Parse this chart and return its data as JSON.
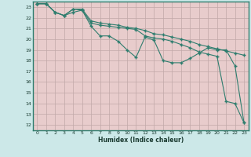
{
  "xlabel": "Humidex (Indice chaleur)",
  "bg_color": "#cce8e8",
  "plot_bg_color": "#e8d8d8",
  "line_color": "#2e7d6e",
  "grid_color_top": "#b8d8d0",
  "grid_color": "#c8a8a8",
  "xlim": [
    -0.5,
    23.5
  ],
  "ylim": [
    11.5,
    23.5
  ],
  "yticks": [
    12,
    13,
    14,
    15,
    16,
    17,
    18,
    19,
    20,
    21,
    22,
    23
  ],
  "xticks": [
    0,
    1,
    2,
    3,
    4,
    5,
    6,
    7,
    8,
    9,
    10,
    11,
    12,
    13,
    14,
    15,
    16,
    17,
    18,
    19,
    20,
    21,
    22,
    23
  ],
  "line1_x": [
    0,
    1,
    2,
    3,
    4,
    5,
    6,
    7,
    8,
    9,
    10,
    11,
    12,
    13,
    14,
    15,
    16,
    17,
    18,
    19,
    20,
    21,
    22,
    23
  ],
  "line1_y": [
    23.3,
    23.3,
    22.5,
    22.2,
    22.8,
    22.8,
    21.7,
    21.5,
    21.4,
    21.3,
    21.1,
    21.0,
    20.8,
    20.5,
    20.4,
    20.2,
    20.0,
    19.8,
    19.5,
    19.3,
    19.1,
    18.9,
    18.7,
    18.5
  ],
  "line2_x": [
    0,
    1,
    2,
    3,
    4,
    5,
    6,
    7,
    8,
    9,
    10,
    11,
    12,
    13,
    14,
    15,
    16,
    17,
    18,
    19,
    20,
    21,
    22,
    23
  ],
  "line2_y": [
    23.3,
    23.3,
    22.5,
    22.2,
    22.5,
    22.7,
    21.2,
    20.3,
    20.3,
    19.8,
    19.0,
    18.3,
    20.2,
    19.9,
    18.0,
    17.8,
    17.8,
    18.2,
    18.7,
    19.2,
    19.0,
    19.0,
    17.5,
    12.2
  ],
  "line3_x": [
    0,
    1,
    2,
    3,
    4,
    5,
    6,
    7,
    8,
    9,
    10,
    11,
    12,
    13,
    14,
    15,
    16,
    17,
    18,
    19,
    20,
    21,
    22,
    23
  ],
  "line3_y": [
    23.3,
    23.3,
    22.5,
    22.2,
    22.8,
    22.7,
    21.5,
    21.3,
    21.2,
    21.1,
    21.0,
    20.9,
    20.3,
    20.1,
    20.0,
    19.8,
    19.5,
    19.2,
    18.8,
    18.6,
    18.4,
    14.2,
    14.0,
    12.2
  ]
}
